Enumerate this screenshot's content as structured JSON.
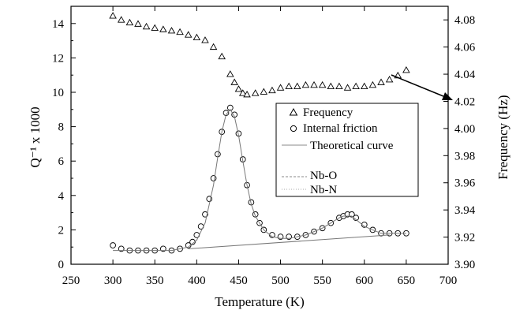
{
  "chart_data": {
    "type": "scatter",
    "title": "",
    "xlabel": "Temperature (K)",
    "ylabel_left": "Q⁻¹ x 1000",
    "ylabel_right": "Frequency (Hz)",
    "xlim": [
      250,
      700
    ],
    "ylim_left": [
      0,
      15
    ],
    "ylim_right": [
      3.9,
      4.09
    ],
    "x_ticks": [
      "250",
      "300",
      "350",
      "400",
      "450",
      "500",
      "550",
      "600",
      "650",
      "700"
    ],
    "y_left_ticks": [
      "0",
      "2",
      "4",
      "6",
      "8",
      "10",
      "12",
      "14"
    ],
    "y_right_ticks": [
      "3.90",
      "3.92",
      "3.94",
      "3.96",
      "3.98",
      "4.00",
      "4.02",
      "4.04",
      "4.06",
      "4.08"
    ],
    "grid": false,
    "legend_position": "center-right",
    "legend": [
      "Frequency",
      "Internal friction",
      "Theoretical curve",
      "Nb-O",
      "Nb-N"
    ],
    "series": [
      {
        "name": "Frequency",
        "axis": "right",
        "marker": "triangle",
        "x": [
          300,
          310,
          320,
          330,
          340,
          350,
          360,
          370,
          380,
          390,
          400,
          410,
          420,
          430,
          440,
          445,
          450,
          455,
          460,
          470,
          480,
          490,
          500,
          510,
          520,
          530,
          540,
          550,
          560,
          570,
          580,
          590,
          600,
          610,
          620,
          630,
          640,
          650
        ],
        "y": [
          4.083,
          4.08,
          4.078,
          4.077,
          4.075,
          4.074,
          4.073,
          4.072,
          4.071,
          4.069,
          4.067,
          4.065,
          4.06,
          4.053,
          4.04,
          4.034,
          4.029,
          4.026,
          4.025,
          4.026,
          4.027,
          4.028,
          4.03,
          4.031,
          4.031,
          4.032,
          4.032,
          4.032,
          4.031,
          4.031,
          4.03,
          4.031,
          4.031,
          4.032,
          4.034,
          4.036,
          4.039,
          4.043
        ]
      },
      {
        "name": "Internal friction",
        "axis": "left",
        "marker": "circle",
        "x": [
          300,
          310,
          320,
          330,
          340,
          350,
          360,
          370,
          380,
          390,
          395,
          400,
          405,
          410,
          415,
          420,
          425,
          430,
          435,
          440,
          445,
          450,
          455,
          460,
          465,
          470,
          475,
          480,
          490,
          500,
          510,
          520,
          530,
          540,
          550,
          560,
          570,
          575,
          580,
          585,
          590,
          600,
          610,
          620,
          630,
          640,
          650
        ],
        "y": [
          1.1,
          0.9,
          0.8,
          0.8,
          0.8,
          0.8,
          0.9,
          0.8,
          0.9,
          1.1,
          1.3,
          1.7,
          2.2,
          2.9,
          3.8,
          5.0,
          6.4,
          7.7,
          8.8,
          9.1,
          8.7,
          7.6,
          6.1,
          4.6,
          3.6,
          2.9,
          2.4,
          2.0,
          1.7,
          1.6,
          1.6,
          1.6,
          1.7,
          1.9,
          2.1,
          2.4,
          2.7,
          2.8,
          2.9,
          2.9,
          2.7,
          2.3,
          2.0,
          1.8,
          1.8,
          1.8,
          1.8
        ]
      },
      {
        "name": "Theoretical curve",
        "axis": "left",
        "marker": "line",
        "x": [
          300,
          310,
          320,
          330,
          340,
          350,
          360,
          370,
          380,
          390,
          400,
          410,
          420,
          425,
          430,
          435,
          440,
          445,
          450,
          455,
          460,
          465,
          470,
          480,
          490,
          500,
          510,
          520,
          530,
          540,
          550,
          560,
          570,
          575,
          580,
          585,
          590,
          600,
          610,
          620,
          630,
          640,
          650
        ],
        "y": [
          0.8,
          0.8,
          0.8,
          0.8,
          0.8,
          0.8,
          0.8,
          0.8,
          0.9,
          1.0,
          1.4,
          2.4,
          4.6,
          6.2,
          7.7,
          8.7,
          9.0,
          8.6,
          7.5,
          6.0,
          4.6,
          3.5,
          2.8,
          2.0,
          1.6,
          1.5,
          1.5,
          1.6,
          1.7,
          1.9,
          2.1,
          2.4,
          2.7,
          2.8,
          2.8,
          2.8,
          2.6,
          2.2,
          2.0,
          1.8,
          1.8,
          1.8,
          1.8
        ]
      },
      {
        "name": "Baseline",
        "axis": "left",
        "marker": "line",
        "x": [
          390,
          630
        ],
        "y": [
          0.9,
          1.7
        ]
      }
    ]
  }
}
